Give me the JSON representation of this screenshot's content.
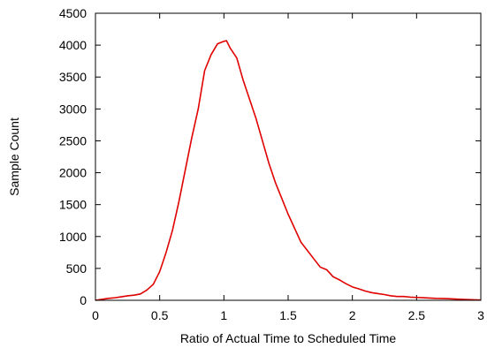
{
  "chart_data": {
    "type": "line",
    "xlabel": "Ratio of Actual Time to Scheduled Time",
    "ylabel": "Sample Count",
    "xlim": [
      0,
      3
    ],
    "ylim": [
      0,
      4500
    ],
    "x_ticks": [
      0,
      0.5,
      1,
      1.5,
      2,
      2.5,
      3
    ],
    "x_tick_labels": [
      "0",
      "0.5",
      "1",
      "1.5",
      "2",
      "2.5",
      "3"
    ],
    "y_ticks": [
      0,
      500,
      1000,
      1500,
      2000,
      2500,
      3000,
      3500,
      4000,
      4500
    ],
    "y_tick_labels": [
      "0",
      "500",
      "1000",
      "1500",
      "2000",
      "2500",
      "3000",
      "3500",
      "4000",
      "4500"
    ],
    "grid": false,
    "series": [
      {
        "color": "#e00000",
        "x": [
          0.0,
          0.05,
          0.1,
          0.15,
          0.2,
          0.25,
          0.3,
          0.35,
          0.4,
          0.45,
          0.5,
          0.55,
          0.6,
          0.65,
          0.7,
          0.75,
          0.8,
          0.85,
          0.9,
          0.95,
          1.0,
          1.02,
          1.05,
          1.1,
          1.15,
          1.2,
          1.25,
          1.3,
          1.35,
          1.4,
          1.45,
          1.5,
          1.55,
          1.6,
          1.65,
          1.7,
          1.75,
          1.8,
          1.85,
          1.9,
          1.95,
          2.0,
          2.05,
          2.1,
          2.15,
          2.2,
          2.25,
          2.3,
          2.35,
          2.4,
          2.45,
          2.5,
          2.55,
          2.6,
          2.65,
          2.7,
          2.75,
          2.8,
          2.85,
          2.9,
          2.95,
          3.0
        ],
        "y": [
          0,
          15,
          30,
          40,
          55,
          70,
          80,
          100,
          160,
          250,
          450,
          750,
          1100,
          1550,
          2050,
          2550,
          3000,
          3600,
          3850,
          4020,
          4060,
          4070,
          3950,
          3800,
          3450,
          3150,
          2850,
          2500,
          2150,
          1850,
          1600,
          1350,
          1130,
          910,
          780,
          650,
          520,
          480,
          370,
          320,
          260,
          210,
          180,
          145,
          120,
          105,
          90,
          70,
          60,
          60,
          50,
          45,
          40,
          35,
          30,
          28,
          25,
          20,
          15,
          12,
          8,
          5
        ]
      }
    ]
  }
}
